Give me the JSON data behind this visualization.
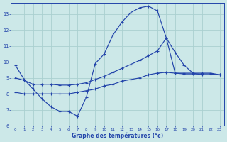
{
  "bg_color": "#cce8e8",
  "line_color": "#2244aa",
  "grid_color": "#aad0d0",
  "xlim": [
    -0.5,
    23.5
  ],
  "ylim": [
    6,
    13.7
  ],
  "xlabel": "Graphe des températures (°c)",
  "line1_x": [
    0,
    1,
    2,
    3,
    4,
    5,
    6,
    7,
    8,
    9,
    10,
    11,
    12,
    13,
    14,
    15,
    16,
    17,
    18,
    19,
    20,
    21
  ],
  "line1_y": [
    9.8,
    8.9,
    8.3,
    7.7,
    7.2,
    6.9,
    6.9,
    6.6,
    7.8,
    9.9,
    10.5,
    11.7,
    12.5,
    13.1,
    13.4,
    13.5,
    13.2,
    11.5,
    10.6,
    9.8,
    9.3,
    9.2
  ],
  "line2_x": [
    0,
    1,
    2,
    3,
    4,
    5,
    6,
    7,
    8,
    9,
    10,
    11,
    12,
    13,
    14,
    15,
    16,
    17,
    18,
    19,
    20,
    21,
    22,
    23
  ],
  "line2_y": [
    9.0,
    8.85,
    8.6,
    8.6,
    8.6,
    8.55,
    8.55,
    8.6,
    8.7,
    8.9,
    9.1,
    9.35,
    9.6,
    9.85,
    10.1,
    10.4,
    10.7,
    11.5,
    9.3,
    9.25,
    9.25,
    9.25,
    9.25,
    9.2
  ],
  "line3_x": [
    0,
    1,
    2,
    3,
    4,
    5,
    6,
    7,
    8,
    9,
    10,
    11,
    12,
    13,
    14,
    15,
    16,
    17,
    18,
    19,
    20,
    21,
    22,
    23
  ],
  "line3_y": [
    8.1,
    8.0,
    8.0,
    8.0,
    8.0,
    8.0,
    8.0,
    8.1,
    8.2,
    8.3,
    8.5,
    8.6,
    8.8,
    8.9,
    9.0,
    9.2,
    9.3,
    9.35,
    9.3,
    9.3,
    9.3,
    9.3,
    9.3,
    9.2
  ],
  "yticks": [
    6,
    7,
    8,
    9,
    10,
    11,
    12,
    13
  ],
  "xticks": [
    0,
    1,
    2,
    3,
    4,
    5,
    6,
    7,
    8,
    9,
    10,
    11,
    12,
    13,
    14,
    15,
    16,
    17,
    18,
    19,
    20,
    21,
    22,
    23
  ]
}
